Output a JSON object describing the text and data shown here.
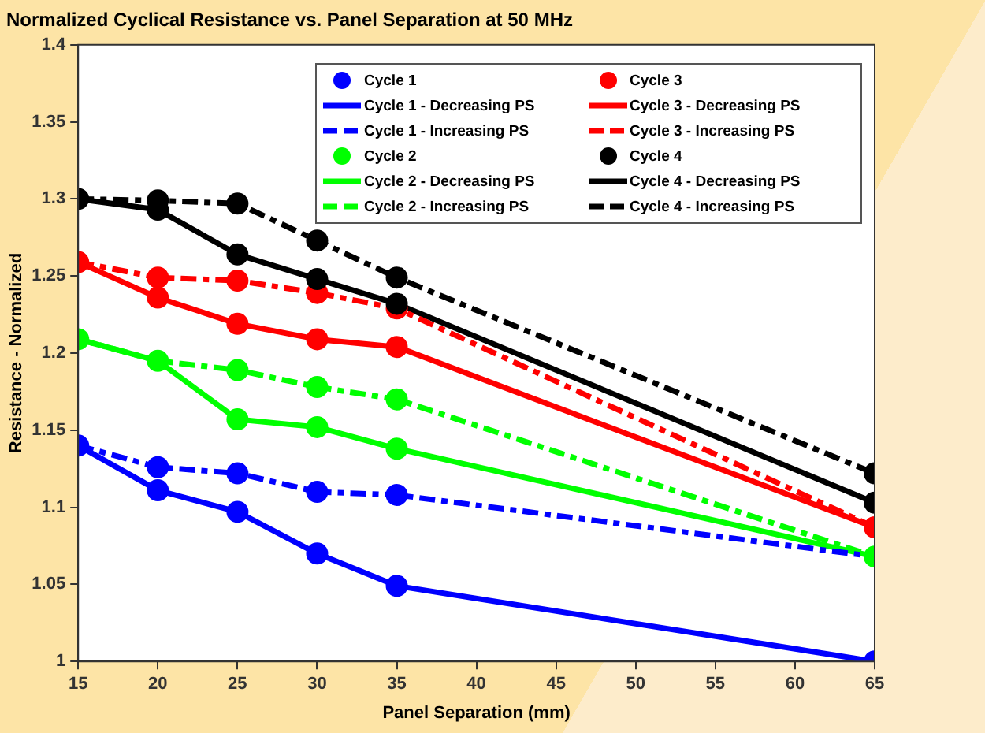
{
  "chart_data": {
    "type": "line",
    "title": "Normalized Cyclical Resistance vs. Panel Separation at 50 MHz",
    "xlabel": "Panel Separation (mm)",
    "ylabel": "Resistance - Normalized",
    "x": [
      15,
      20,
      25,
      30,
      35,
      65
    ],
    "xlim": [
      15,
      65
    ],
    "xticks": [
      15,
      20,
      25,
      30,
      35,
      40,
      45,
      50,
      55,
      60,
      65
    ],
    "ylim": [
      1,
      1.4
    ],
    "yticks": [
      1,
      1.05,
      1.1,
      1.15,
      1.2,
      1.25,
      1.3,
      1.35,
      1.4
    ],
    "grid": false,
    "legend": "top right",
    "series": [
      {
        "name": "Cycle 1",
        "type": "scatter",
        "marker": "circle",
        "color": "#0000ff",
        "x": [
          15,
          20,
          25,
          30,
          35,
          65,
          20,
          25,
          30,
          35
        ],
        "values": [
          1.14,
          1.111,
          1.097,
          1.07,
          1.049,
          1.0,
          1.126,
          1.122,
          1.11,
          1.108
        ]
      },
      {
        "name": "Cycle 1 - Decreasing PS",
        "color": "#0000ff",
        "line_style": "solid",
        "marker": "none",
        "values": [
          1.14,
          1.111,
          1.097,
          1.07,
          1.049,
          1.0
        ]
      },
      {
        "name": "Cycle 1 - Increasing PS",
        "color": "#0000ff",
        "line_style": "dashed",
        "marker": "none",
        "values": [
          1.14,
          1.126,
          1.122,
          1.11,
          1.108,
          1.068
        ]
      },
      {
        "name": "Cycle 2",
        "type": "scatter",
        "marker": "circle",
        "color": "#00ff00",
        "x": [
          15,
          20,
          25,
          30,
          35,
          65,
          25,
          30,
          35
        ],
        "values": [
          1.209,
          1.195,
          1.157,
          1.152,
          1.138,
          1.068,
          1.189,
          1.178,
          1.17
        ]
      },
      {
        "name": "Cycle 2 - Decreasing PS",
        "color": "#00ff00",
        "line_style": "solid",
        "marker": "none",
        "values": [
          1.209,
          1.195,
          1.157,
          1.152,
          1.138,
          1.068
        ]
      },
      {
        "name": "Cycle 2 - Increasing PS",
        "color": "#00ff00",
        "line_style": "dashed",
        "marker": "none",
        "values": [
          1.209,
          1.195,
          1.189,
          1.178,
          1.17,
          1.068
        ]
      },
      {
        "name": "Cycle 3",
        "type": "scatter",
        "marker": "circle",
        "color": "#ff0000",
        "x": [
          15,
          20,
          25,
          30,
          35,
          65,
          20,
          25,
          30,
          35
        ],
        "values": [
          1.259,
          1.236,
          1.219,
          1.209,
          1.204,
          1.087,
          1.249,
          1.247,
          1.239,
          1.229
        ]
      },
      {
        "name": "Cycle 3 - Decreasing PS",
        "color": "#ff0000",
        "line_style": "solid",
        "marker": "none",
        "values": [
          1.259,
          1.236,
          1.219,
          1.209,
          1.204,
          1.087
        ]
      },
      {
        "name": "Cycle 3 - Increasing PS",
        "color": "#ff0000",
        "line_style": "dashed",
        "marker": "none",
        "values": [
          1.259,
          1.249,
          1.247,
          1.239,
          1.229,
          1.087
        ]
      },
      {
        "name": "Cycle 4",
        "type": "scatter",
        "marker": "circle",
        "color": "#000000",
        "x": [
          15,
          20,
          25,
          30,
          35,
          65,
          20,
          25,
          30,
          35,
          65
        ],
        "values": [
          1.3,
          1.293,
          1.264,
          1.248,
          1.232,
          1.103,
          1.299,
          1.297,
          1.273,
          1.249,
          1.122
        ]
      },
      {
        "name": "Cycle 4 - Decreasing PS",
        "color": "#000000",
        "line_style": "solid",
        "marker": "none",
        "values": [
          1.3,
          1.293,
          1.264,
          1.248,
          1.232,
          1.103
        ]
      },
      {
        "name": "Cycle 4 - Increasing PS",
        "color": "#000000",
        "line_style": "dashed",
        "marker": "none",
        "values": [
          1.3,
          1.299,
          1.297,
          1.273,
          1.249,
          1.122
        ]
      }
    ]
  }
}
